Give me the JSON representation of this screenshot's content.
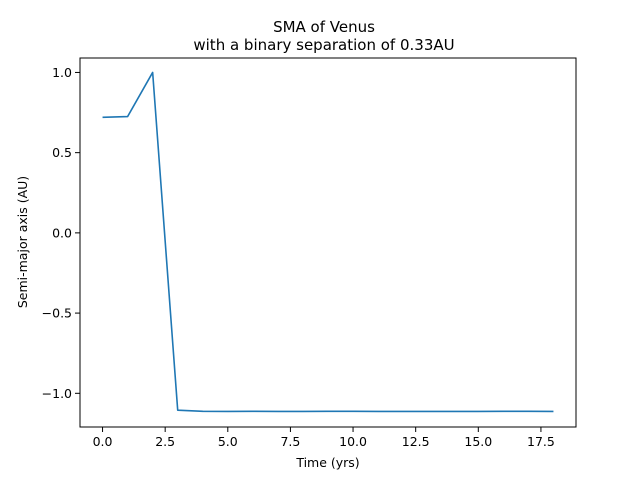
{
  "chart_data": {
    "type": "line",
    "title": "SMA of Venus",
    "subtitle": "with a binary separation of 0.33AU",
    "xlabel": "Time (yrs)",
    "ylabel": "Semi-major axis (AU)",
    "xlim": [
      -0.9,
      18.9
    ],
    "ylim": [
      -1.21,
      1.09
    ],
    "xticks": [
      0.0,
      2.5,
      5.0,
      7.5,
      10.0,
      12.5,
      15.0,
      17.5
    ],
    "xtick_labels": [
      "0.0",
      "2.5",
      "5.0",
      "7.5",
      "10.0",
      "12.5",
      "15.0",
      "17.5"
    ],
    "yticks": [
      1.0,
      0.5,
      0.0,
      -0.5,
      -1.0
    ],
    "ytick_labels": [
      "1.0",
      "0.5",
      "0.0",
      "−0.5",
      "−1.0"
    ],
    "grid": false,
    "series": [
      {
        "color": "#1f77b4",
        "x": [
          0,
          1,
          2,
          3,
          4,
          5,
          6,
          7,
          8,
          9,
          10,
          11,
          12,
          13,
          14,
          15,
          16,
          17,
          18
        ],
        "y": [
          0.72,
          0.725,
          1.0,
          -1.105,
          -1.112,
          -1.113,
          -1.112,
          -1.113,
          -1.113,
          -1.112,
          -1.112,
          -1.113,
          -1.113,
          -1.113,
          -1.113,
          -1.113,
          -1.112,
          -1.112,
          -1.113
        ]
      }
    ]
  }
}
